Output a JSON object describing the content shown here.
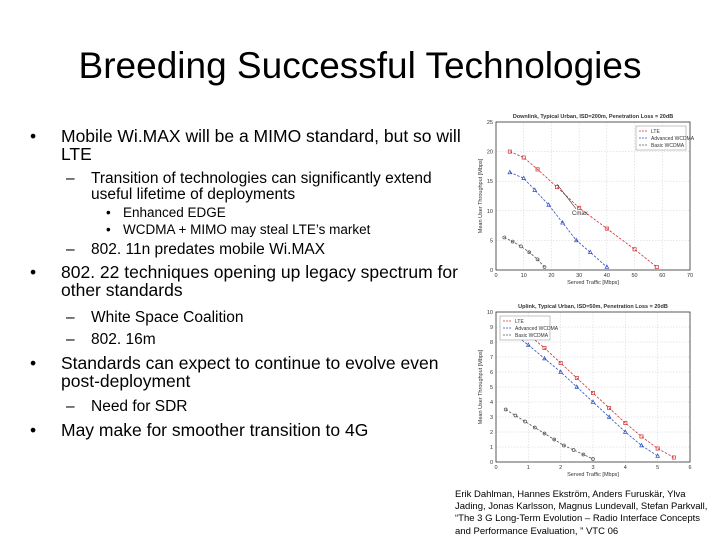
{
  "title": "Breeding Successful Technologies",
  "bullets": {
    "b1": "Mobile Wi.MAX will be a MIMO standard, but so will LTE",
    "b1_1": "Transition of technologies can significantly extend useful lifetime of deployments",
    "b1_1_1": "Enhanced EDGE",
    "b1_1_2": "WCDMA + MIMO may steal LTE’s market",
    "b1_2": "802. 11n predates mobile Wi.MAX",
    "b2": "802. 22 techniques opening up legacy spectrum for other standards",
    "b2_1": "White Space Coalition",
    "b2_2": "802. 16m",
    "b3": "Standards can expect to continue to evolve even post-deployment",
    "b3_1": "Need for SDR",
    "b4": "May make for smoother transition to 4G"
  },
  "citation": "Erik Dahlman, Hannes Ekström, Anders Furuskär, Ylva Jading, Jonas Karlsson, Magnus Lundevall, Stefan Parkvall, “The 3 G Long-Term Evolution – Radio Interface Concepts and Performance Evaluation, ” VTC 06",
  "chart_data": [
    {
      "type": "line",
      "title": "Downlink, Typical Urban, ISD=200m, Penetration Loss = 20dB",
      "xlabel": "Served Traffic [Mbps]",
      "ylabel": "Mean User Throughput [Mbps]",
      "xlim": [
        0,
        70
      ],
      "ylim": [
        0,
        25
      ],
      "xticks": [
        "0",
        "10",
        "20",
        "30",
        "40",
        "50",
        "60",
        "70"
      ],
      "yticks": [
        "0",
        "5",
        "10",
        "15",
        "20",
        "25"
      ],
      "annotation": "Cmax",
      "grid": true,
      "legend": "top-right",
      "series": [
        {
          "name": "LTE",
          "color": "#d03030",
          "marker": "square",
          "x": [
            5,
            10,
            15,
            22,
            30,
            40,
            50,
            58
          ],
          "y": [
            20,
            19,
            17,
            14,
            10.5,
            7,
            3.5,
            0.5
          ]
        },
        {
          "name": "Advanced WCDMA",
          "color": "#3050c0",
          "marker": "triangle",
          "x": [
            5,
            10,
            14,
            19,
            24,
            29,
            34,
            40
          ],
          "y": [
            16.5,
            15.5,
            13.5,
            11,
            8,
            5,
            3,
            0.5
          ]
        },
        {
          "name": "Basic WCDMA",
          "color": "#555555",
          "marker": "circle",
          "x": [
            3,
            6,
            9,
            12,
            15,
            17.5
          ],
          "y": [
            5.5,
            4.8,
            4,
            3,
            1.8,
            0.5
          ]
        }
      ]
    },
    {
      "type": "line",
      "title": "Uplink, Typical Urban, ISD=50m, Penetration Loss = 20dB",
      "xlabel": "Served Traffic [Mbps]",
      "ylabel": "Mean User Throughput [Mbps]",
      "xlim": [
        0,
        6
      ],
      "ylim": [
        0,
        10
      ],
      "xticks": [
        "0",
        "1",
        "2",
        "3",
        "4",
        "5",
        "6"
      ],
      "yticks": [
        "0",
        "1",
        "2",
        "3",
        "4",
        "5",
        "6",
        "7",
        "8",
        "9",
        "10"
      ],
      "grid": true,
      "legend": "top-left",
      "series": [
        {
          "name": "LTE",
          "color": "#d03030",
          "marker": "square",
          "x": [
            0.5,
            1,
            1.5,
            2,
            2.5,
            3,
            3.5,
            4,
            4.5,
            5,
            5.5
          ],
          "y": [
            9.2,
            8.5,
            7.6,
            6.6,
            5.6,
            4.6,
            3.6,
            2.6,
            1.7,
            0.9,
            0.3
          ]
        },
        {
          "name": "Advanced WCDMA",
          "color": "#3050c0",
          "marker": "triangle",
          "x": [
            0.5,
            1,
            1.5,
            2,
            2.5,
            3,
            3.5,
            4,
            4.5,
            5
          ],
          "y": [
            8.6,
            7.8,
            6.9,
            6,
            5,
            4,
            3,
            2,
            1.1,
            0.4
          ]
        },
        {
          "name": "Basic WCDMA",
          "color": "#555555",
          "marker": "circle",
          "x": [
            0.3,
            0.6,
            0.9,
            1.2,
            1.5,
            1.8,
            2.1,
            2.4,
            2.7,
            3
          ],
          "y": [
            3.5,
            3.1,
            2.7,
            2.3,
            1.9,
            1.5,
            1.1,
            0.8,
            0.5,
            0.2
          ]
        }
      ]
    }
  ]
}
